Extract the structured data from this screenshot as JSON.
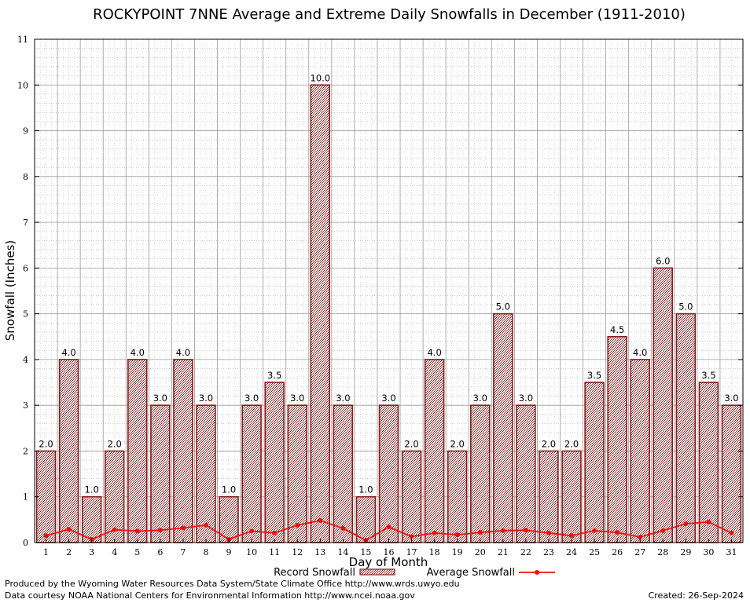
{
  "chart_data": {
    "type": "bar",
    "title": "ROCKYPOINT 7NNE Average and Extreme Daily Snowfalls in December (1911-2010)",
    "xlabel": "Day of Month",
    "ylabel": "Snowfall (Inches)",
    "ylim": [
      0,
      11
    ],
    "yticks": [
      "0",
      "1",
      "2",
      "3",
      "4",
      "5",
      "6",
      "7",
      "8",
      "9",
      "10",
      "11"
    ],
    "categories": [
      "1",
      "2",
      "3",
      "4",
      "5",
      "6",
      "7",
      "8",
      "9",
      "10",
      "11",
      "12",
      "13",
      "14",
      "15",
      "16",
      "17",
      "18",
      "19",
      "20",
      "21",
      "22",
      "23",
      "24",
      "25",
      "26",
      "27",
      "28",
      "29",
      "30",
      "31"
    ],
    "series": [
      {
        "name": "Record Snowfall",
        "type": "bar",
        "values": [
          2.0,
          4.0,
          1.0,
          2.0,
          4.0,
          3.0,
          4.0,
          3.0,
          1.0,
          3.0,
          3.5,
          3.0,
          10.0,
          3.0,
          1.0,
          3.0,
          2.0,
          4.0,
          2.0,
          3.0,
          5.0,
          3.0,
          2.0,
          2.0,
          3.5,
          4.5,
          4.0,
          6.0,
          5.0,
          3.5,
          3.0
        ],
        "labels": [
          "2.0",
          "4.0",
          "1.0",
          "2.0",
          "4.0",
          "3.0",
          "4.0",
          "3.0",
          "1.0",
          "3.0",
          "3.5",
          "3.0",
          "10.0",
          "3.0",
          "1.0",
          "3.0",
          "2.0",
          "4.0",
          "2.0",
          "3.0",
          "5.0",
          "3.0",
          "2.0",
          "2.0",
          "3.5",
          "4.5",
          "4.0",
          "6.0",
          "5.0",
          "3.5",
          "3.0"
        ],
        "color": "#8b1a1a"
      },
      {
        "name": "Average Snowfall",
        "type": "line",
        "values": [
          0.15,
          0.29,
          0.07,
          0.28,
          0.25,
          0.27,
          0.32,
          0.38,
          0.07,
          0.25,
          0.21,
          0.38,
          0.48,
          0.31,
          0.05,
          0.34,
          0.13,
          0.21,
          0.17,
          0.22,
          0.26,
          0.27,
          0.21,
          0.15,
          0.26,
          0.22,
          0.12,
          0.26,
          0.41,
          0.45,
          0.21
        ],
        "color": "#ee1111"
      }
    ],
    "grid": true,
    "legend": "bottom-center"
  },
  "footer": {
    "credit_line1": "Produced by the Wyoming Water Resources Data System/State Climate Office http://www.wrds.uwyo.edu",
    "credit_line2": "Data courtesy NOAA National Centers for Environmental Information http://www.ncei.noaa.gov",
    "created": "Created:  26-Sep-2024"
  }
}
